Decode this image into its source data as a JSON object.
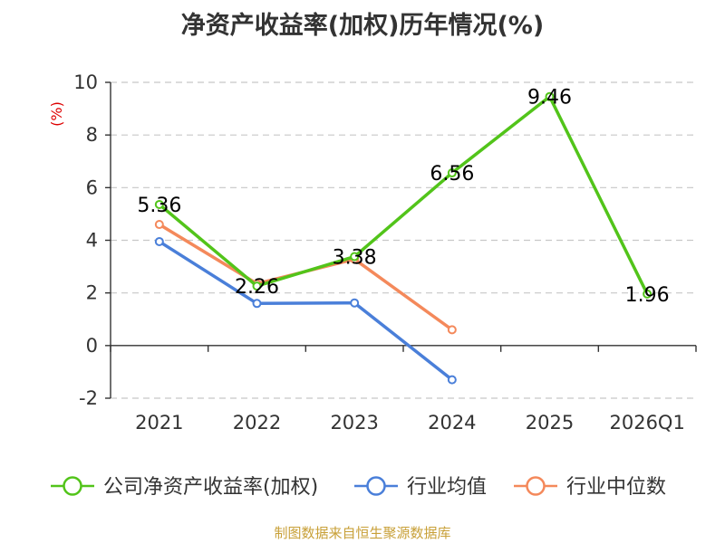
{
  "title": "净资产收益率(加权)历年情况(%)",
  "source": "制图数据来自恒生聚源数据库",
  "chart_data": {
    "type": "line",
    "title": "净资产收益率(加权)历年情况(%)",
    "ylabel": "(%)",
    "xlabel": "",
    "categories": [
      "2021",
      "2022",
      "2023",
      "2024",
      "2025",
      "2026Q1"
    ],
    "ylim": [
      -2,
      10
    ],
    "yticks": [
      -2,
      0,
      2,
      4,
      6,
      8,
      10
    ],
    "grid": "horizontal dashed",
    "legend_position": "bottom",
    "series": [
      {
        "name": "公司净资产收益率(加权)",
        "color": "#52c41a",
        "values": [
          5.36,
          2.26,
          3.38,
          6.56,
          9.46,
          1.96
        ],
        "labels": [
          "5.36",
          "2.26",
          "3.38",
          "6.56",
          "9.46",
          "1.96"
        ]
      },
      {
        "name": "行业均值",
        "color": "#4a7fd9",
        "values": [
          3.95,
          1.6,
          1.62,
          -1.3,
          null,
          null
        ]
      },
      {
        "name": "行业中位数",
        "color": "#f4895b",
        "values": [
          4.6,
          2.35,
          3.28,
          0.6,
          null,
          null
        ]
      }
    ]
  }
}
